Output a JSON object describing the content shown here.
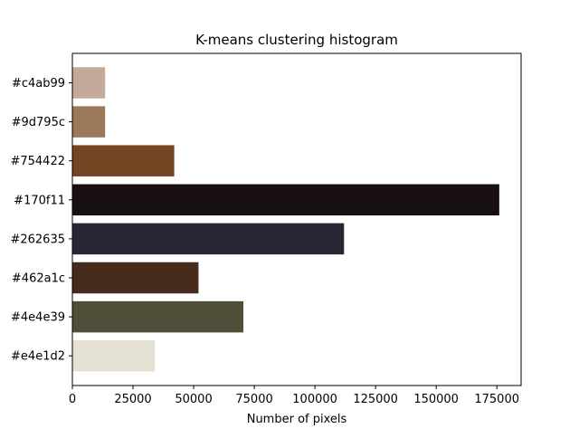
{
  "chart_data": {
    "type": "bar",
    "orientation": "horizontal",
    "title": "K-means clustering histogram",
    "xlabel": "Number of pixels",
    "ylabel": "",
    "xlim": [
      0,
      185000
    ],
    "xticks": [
      0,
      25000,
      50000,
      75000,
      100000,
      125000,
      150000,
      175000
    ],
    "categories": [
      "#c4ab99",
      "#9d795c",
      "#754422",
      "#170f11",
      "#262635",
      "#462a1c",
      "#4e4e39",
      "#e4e1d2"
    ],
    "values": [
      13500,
      13500,
      42000,
      176000,
      112000,
      52000,
      70500,
      34000
    ],
    "bar_colors": [
      "#c4ab99",
      "#9d795c",
      "#754422",
      "#170f11",
      "#262635",
      "#462a1c",
      "#4e4e39",
      "#e4e1d2"
    ],
    "grid": false,
    "legend": "none"
  }
}
